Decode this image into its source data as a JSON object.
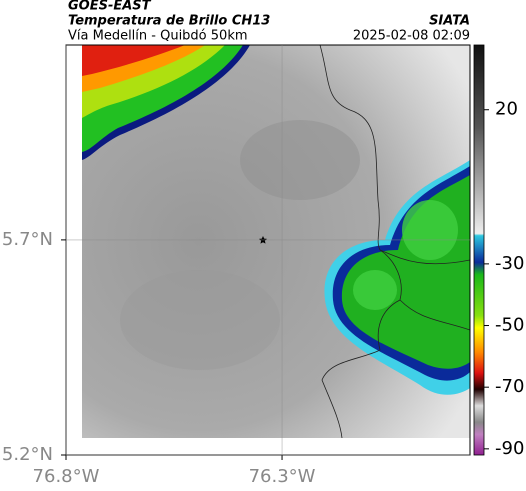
{
  "header": {
    "title": "GOES-EAST",
    "subtitle": "Temperatura de Brillo CH13",
    "route": "Vía Medellín - Quibdó 50km",
    "source": "SIATA",
    "timestamp": "2025-02-08 02:09"
  },
  "map": {
    "xlim": [
      -76.8,
      -75.865
    ],
    "ylim": [
      5.2,
      6.153
    ],
    "xticks": [
      {
        "value": -76.8,
        "label": "76.8°W"
      },
      {
        "value": -76.3,
        "label": "76.3°W"
      }
    ],
    "yticks": [
      {
        "value": 5.2,
        "label": "5.2°N"
      },
      {
        "value": 5.7,
        "label": "5.7°N"
      }
    ]
  },
  "colorbar": {
    "lim": [
      -92,
      41
    ],
    "ticks": [
      20,
      -30,
      -50,
      -70,
      -90
    ]
  }
}
